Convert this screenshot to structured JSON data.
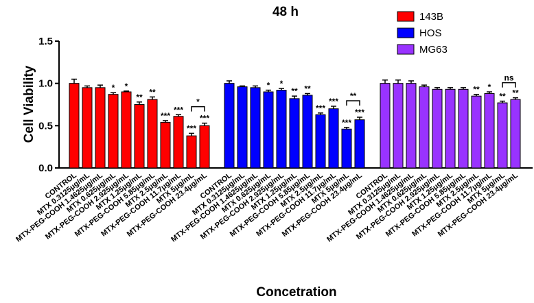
{
  "chart_data": {
    "type": "bar",
    "title": "48 h",
    "xlabel": "Concetration",
    "ylabel": "Cell Viability",
    "ylim": [
      0,
      1.5
    ],
    "yticks": [
      "0.0",
      "0.5",
      "1.0",
      "1.5"
    ],
    "ytick_values": [
      0,
      0.5,
      1.0,
      1.5
    ],
    "legend_position": "top-right",
    "categories": [
      "CONTROL",
      "MTX 0.3125μg/mL",
      "MTX-PEG-COOH 1.4625μg/mL",
      "MTX 0.625μg/mL",
      "MTX-PEG-COOH 2.925μg/mL",
      "MTX 1.25μg/mL",
      "MTX-PEG-COOH 5.85μg/mL",
      "MTX 2.5μg/mL",
      "MTX-PEG-COOH 11.7μg/mL",
      "MTX 5μg/mL",
      "MTX-PEG-COOH 23.4μg/mL"
    ],
    "series": [
      {
        "name": "143B",
        "color": "#ff0000",
        "values": [
          1.0,
          0.95,
          0.95,
          0.87,
          0.9,
          0.75,
          0.81,
          0.54,
          0.61,
          0.38,
          0.5
        ],
        "errors": [
          0.05,
          0.02,
          0.03,
          0.02,
          0.01,
          0.03,
          0.03,
          0.02,
          0.02,
          0.03,
          0.03
        ],
        "sig": [
          "",
          "",
          "",
          "*",
          "*",
          "**",
          "**",
          "***",
          "***",
          "***",
          "***"
        ],
        "bracket": {
          "from": 9,
          "to": 10,
          "label": "*"
        }
      },
      {
        "name": "HOS",
        "color": "#0000ff",
        "values": [
          1.0,
          0.96,
          0.95,
          0.9,
          0.92,
          0.82,
          0.86,
          0.63,
          0.7,
          0.46,
          0.57
        ],
        "errors": [
          0.03,
          0.01,
          0.02,
          0.02,
          0.02,
          0.03,
          0.02,
          0.02,
          0.03,
          0.02,
          0.03
        ],
        "sig": [
          "",
          "",
          "",
          "*",
          "*",
          "**",
          "**",
          "***",
          "***",
          "***",
          "***"
        ],
        "bracket": {
          "from": 9,
          "to": 10,
          "label": "**"
        }
      },
      {
        "name": "MG63",
        "color": "#9933ff",
        "values": [
          1.0,
          1.0,
          1.0,
          0.96,
          0.93,
          0.93,
          0.93,
          0.85,
          0.88,
          0.77,
          0.81
        ],
        "errors": [
          0.04,
          0.04,
          0.03,
          0.02,
          0.02,
          0.02,
          0.02,
          0.02,
          0.02,
          0.02,
          0.02
        ],
        "sig": [
          "",
          "",
          "",
          "",
          "",
          "",
          "",
          "**",
          "*",
          "**",
          "**"
        ],
        "bracket": {
          "from": 9,
          "to": 10,
          "label": "ns"
        }
      }
    ]
  }
}
